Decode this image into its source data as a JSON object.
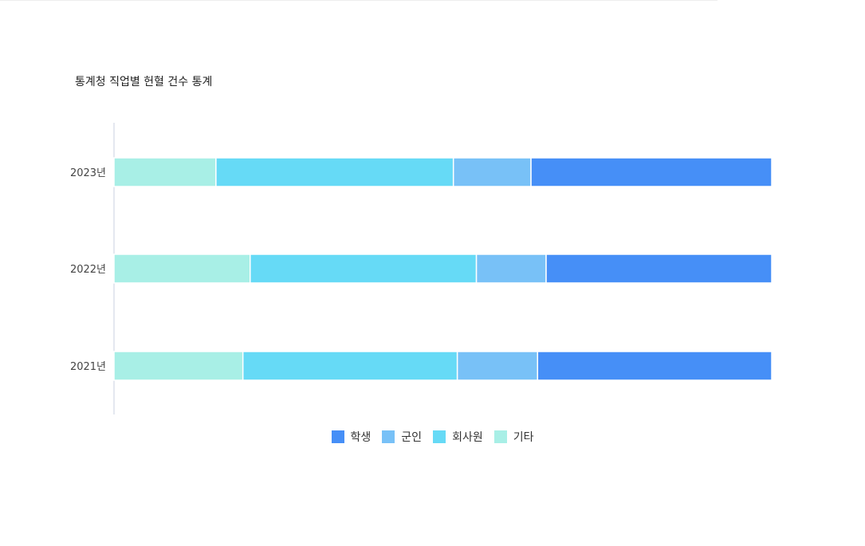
{
  "chart_data": {
    "type": "bar",
    "orientation": "horizontal",
    "stacked": true,
    "normalized": true,
    "title": "통계청 직업별 헌혈 건수 통계",
    "categories": [
      "2023년",
      "2022년",
      "2021년"
    ],
    "series": [
      {
        "name": "기타",
        "color": "#A8EFE6",
        "values": [
          15.5,
          20.7,
          19.6
        ]
      },
      {
        "name": "회사원",
        "color": "#66DAF6",
        "values": [
          36.1,
          34.4,
          32.6
        ]
      },
      {
        "name": "군인",
        "color": "#78C1F7",
        "values": [
          11.8,
          10.6,
          12.2
        ]
      },
      {
        "name": "학생",
        "color": "#468FF7",
        "values": [
          36.6,
          34.3,
          35.6
        ]
      }
    ],
    "legend_order": [
      "학생",
      "군인",
      "회사원",
      "기타"
    ],
    "legend_position": "bottom",
    "xlim": [
      0,
      100
    ],
    "grid": false
  }
}
